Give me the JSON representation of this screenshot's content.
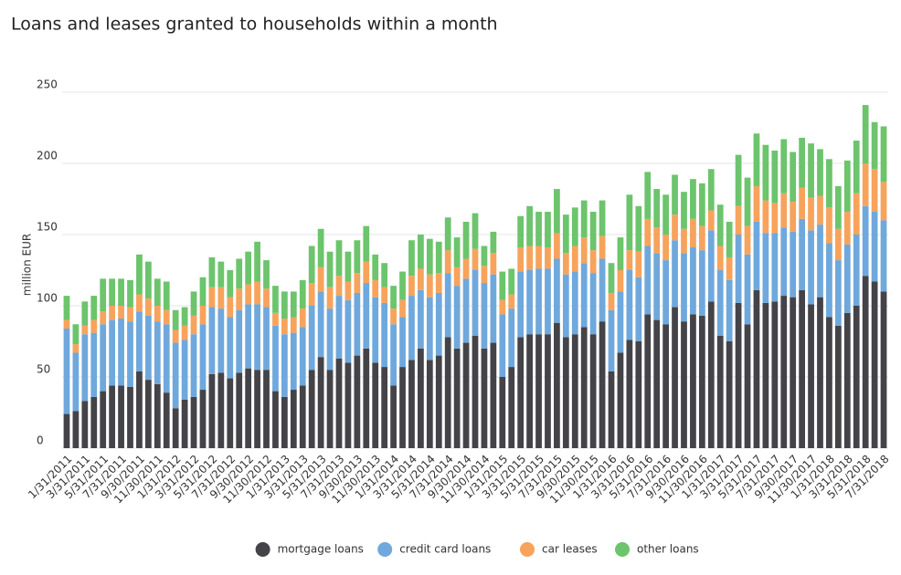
{
  "chart_data": {
    "type": "stacked_bar",
    "title": "Loans and leases granted to households within a month",
    "y_label": "million EUR",
    "categories": [
      "1/31/2011",
      null,
      "3/31/2011",
      null,
      "5/31/2011",
      null,
      "7/31/2011",
      null,
      "9/30/2011",
      null,
      "11/30/2011",
      null,
      "1/31/2012",
      null,
      "3/31/2012",
      null,
      "5/31/2012",
      null,
      "7/31/2012",
      null,
      "9/30/2012",
      null,
      "11/30/2012",
      null,
      "1/31/2013",
      null,
      "3/31/2013",
      null,
      "5/31/2013",
      null,
      "7/31/2013",
      null,
      "9/30/2013",
      null,
      "11/30/2013",
      null,
      "1/31/2014",
      null,
      "3/31/2014",
      null,
      "5/31/2014",
      null,
      "7/31/2014",
      null,
      "9/30/2014",
      null,
      "11/30/2014",
      null,
      "1/31/2015",
      null,
      "3/31/2015",
      null,
      "5/31/2015",
      null,
      "7/31/2015",
      null,
      "9/30/2015",
      null,
      "11/30/2015",
      null,
      "1/31/2016",
      null,
      "3/31/2016",
      null,
      "5/31/2016",
      null,
      "7/31/2016",
      null,
      "9/30/2016",
      null,
      "11/30/2016",
      null,
      "1/31/2017",
      null,
      "3/31/2017",
      null,
      "5/31/2017",
      null,
      "7/31/2017",
      null,
      "9/30/2017",
      null,
      "11/30/2017",
      null,
      "1/31/2018",
      null,
      "3/31/2018",
      null,
      "5/31/2018",
      null,
      "7/31/2018"
    ],
    "series": [
      {
        "name": "mortgage loans",
        "color": "#434348",
        "values": [
          24,
          26,
          33,
          36,
          40,
          44,
          44,
          43,
          54,
          48,
          45,
          39,
          28,
          34,
          36,
          41,
          52,
          53,
          49,
          53,
          56,
          55,
          55,
          40,
          36,
          41,
          44,
          55,
          64,
          55,
          63,
          60,
          65,
          70,
          60,
          57,
          44,
          57,
          62,
          70,
          62,
          65,
          78,
          70,
          74,
          79,
          70,
          74,
          50,
          57,
          78,
          80,
          80,
          80,
          88,
          78,
          80,
          85,
          80,
          89,
          54,
          67,
          76,
          75,
          94,
          90,
          87,
          99,
          89,
          94,
          93,
          103,
          79,
          75,
          102,
          87,
          111,
          102,
          103,
          107,
          106,
          111,
          101,
          106,
          92,
          86,
          95,
          100,
          121,
          117,
          110
        ]
      },
      {
        "name": "credit card loans",
        "color": "#6fa8dc",
        "values": [
          60,
          41,
          47,
          45,
          47,
          46,
          47,
          46,
          42,
          45,
          44,
          48,
          46,
          42,
          44,
          46,
          47,
          45,
          43,
          44,
          45,
          46,
          44,
          46,
          44,
          40,
          41,
          45,
          46,
          43,
          44,
          44,
          44,
          46,
          46,
          45,
          43,
          35,
          45,
          41,
          44,
          44,
          45,
          44,
          45,
          46,
          46,
          48,
          44,
          41,
          46,
          45,
          46,
          46,
          45,
          44,
          44,
          45,
          43,
          44,
          43,
          43,
          49,
          45,
          48,
          47,
          45,
          47,
          48,
          47,
          46,
          50,
          46,
          43,
          48,
          49,
          48,
          49,
          48,
          48,
          46,
          50,
          52,
          51,
          52,
          46,
          48,
          50,
          49,
          49,
          50
        ]
      },
      {
        "name": "car leases",
        "color": "#f7a35c",
        "values": [
          6,
          6,
          6,
          9,
          9,
          10,
          9,
          10,
          12,
          12,
          11,
          10,
          9,
          10,
          13,
          13,
          14,
          15,
          14,
          15,
          14,
          16,
          13,
          9,
          11,
          11,
          13,
          16,
          17,
          15,
          14,
          13,
          14,
          15,
          12,
          11,
          11,
          12,
          14,
          15,
          16,
          14,
          16,
          13,
          14,
          15,
          12,
          15,
          10,
          10,
          17,
          17,
          16,
          15,
          18,
          15,
          18,
          18,
          16,
          16,
          12,
          15,
          14,
          18,
          19,
          18,
          18,
          18,
          17,
          20,
          17,
          14,
          17,
          16,
          20,
          20,
          25,
          23,
          21,
          24,
          21,
          22,
          23,
          20,
          25,
          22,
          23,
          29,
          30,
          30,
          27
        ]
      },
      {
        "name": "other loans",
        "color": "#6cc46c",
        "values": [
          17,
          14,
          17,
          17,
          23,
          19,
          19,
          19,
          28,
          26,
          19,
          20,
          14,
          13,
          17,
          20,
          21,
          18,
          19,
          21,
          23,
          28,
          20,
          19,
          19,
          18,
          20,
          26,
          27,
          25,
          25,
          21,
          23,
          25,
          18,
          17,
          16,
          20,
          25,
          24,
          25,
          22,
          23,
          21,
          26,
          25,
          14,
          15,
          20,
          18,
          22,
          28,
          24,
          25,
          31,
          27,
          27,
          26,
          27,
          25,
          21,
          23,
          39,
          32,
          33,
          27,
          28,
          28,
          26,
          28,
          30,
          29,
          29,
          25,
          36,
          34,
          37,
          39,
          37,
          38,
          35,
          35,
          38,
          33,
          34,
          30,
          36,
          37,
          41,
          33,
          39
        ]
      }
    ],
    "ylim": [
      0,
      250
    ],
    "yticks": [
      0,
      50,
      100,
      150,
      200,
      250
    ],
    "grid": true,
    "legend": "bottom"
  }
}
